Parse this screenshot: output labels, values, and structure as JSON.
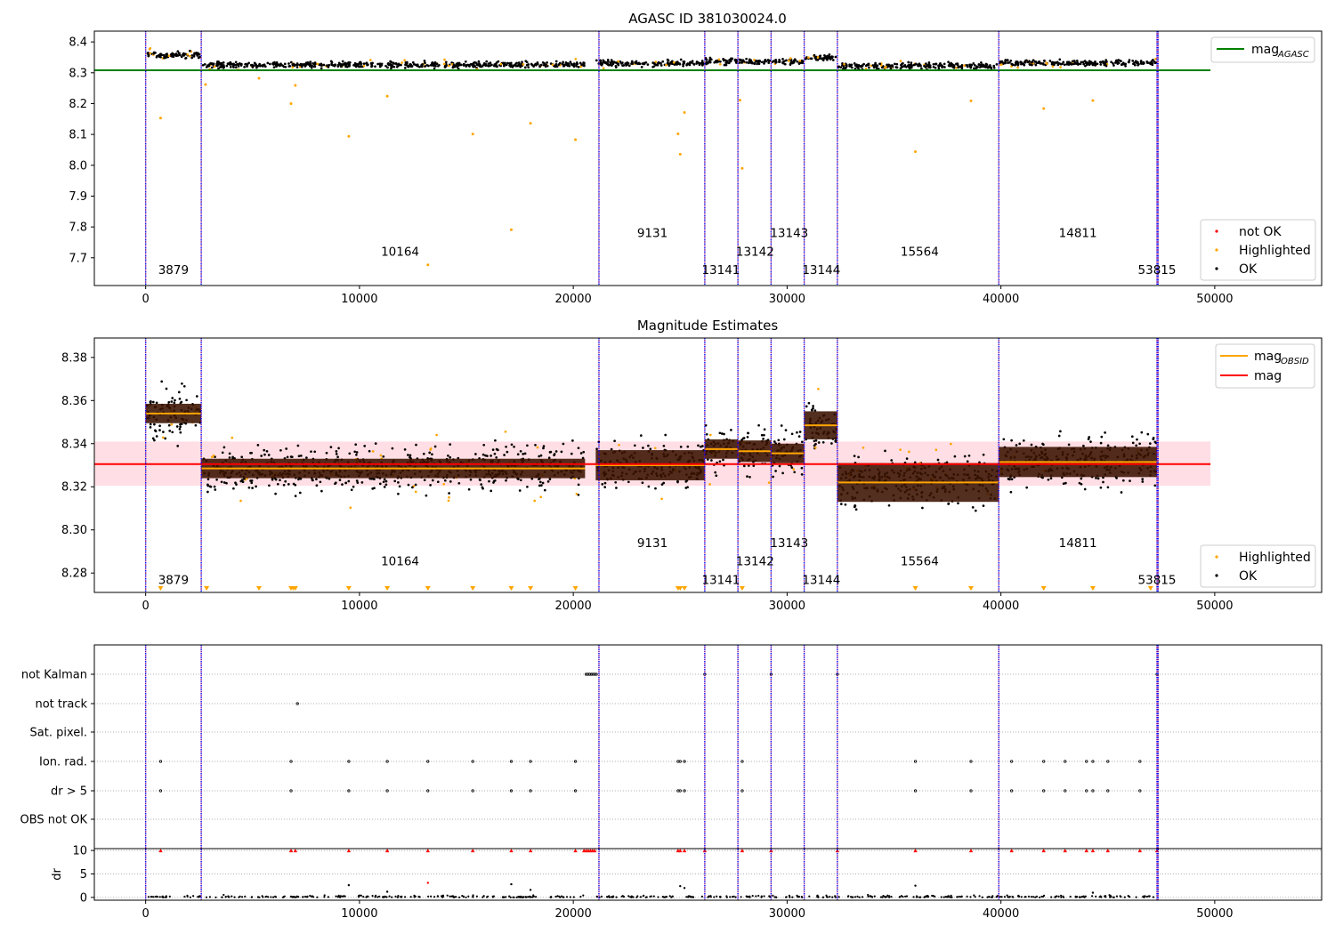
{
  "chart_data": [
    {
      "type": "scatter",
      "title": "AGASC ID 381030024.0",
      "xlim": [
        -2400,
        55000
      ],
      "ylim": [
        7.61,
        8.435
      ],
      "x_ticks": [
        0,
        10000,
        20000,
        30000,
        40000,
        50000
      ],
      "y_ticks": [
        7.7,
        7.8,
        7.9,
        8.0,
        8.1,
        8.2,
        8.3,
        8.4
      ],
      "grid": false,
      "legend_upper": {
        "position": "top-right",
        "entries": [
          {
            "label": "mag",
            "sub": "AGASC",
            "color": "#008000",
            "kind": "line"
          }
        ]
      },
      "legend_lower": {
        "position": "bottom-right",
        "entries": [
          {
            "label": "not OK",
            "color": "#ff0000",
            "kind": "dot"
          },
          {
            "label": "Highlighted",
            "color": "#ffa500",
            "kind": "dot"
          },
          {
            "label": "OK",
            "color": "#000000",
            "kind": "dot"
          }
        ]
      },
      "mag_agasc": 8.308,
      "mag_agasc_xrange": [
        -2400,
        49800
      ],
      "obsid_boundaries": [
        0,
        2600,
        21200,
        26150,
        27700,
        29250,
        30800,
        32350,
        39900,
        47300,
        47350
      ],
      "segments": [
        {
          "x0": 0,
          "x1": 2600,
          "level": 8.358,
          "scatter": 0.006
        },
        {
          "x0": 2600,
          "x1": 20550,
          "level": 8.326,
          "scatter": 0.005
        },
        {
          "x0": 21050,
          "x1": 26150,
          "level": 8.33,
          "scatter": 0.005
        },
        {
          "x0": 26150,
          "x1": 27700,
          "level": 8.337,
          "scatter": 0.005
        },
        {
          "x0": 27700,
          "x1": 29250,
          "level": 8.336,
          "scatter": 0.004
        },
        {
          "x0": 29250,
          "x1": 30800,
          "level": 8.336,
          "scatter": 0.005
        },
        {
          "x0": 30800,
          "x1": 32350,
          "level": 8.349,
          "scatter": 0.005
        },
        {
          "x0": 32350,
          "x1": 39900,
          "level": 8.322,
          "scatter": 0.005
        },
        {
          "x0": 39900,
          "x1": 47300,
          "level": 8.331,
          "scatter": 0.005
        }
      ],
      "highlighted_outliers": [
        {
          "x": 700,
          "y": 8.153
        },
        {
          "x": 2800,
          "y": 8.262
        },
        {
          "x": 5300,
          "y": 8.282
        },
        {
          "x": 6800,
          "y": 8.2
        },
        {
          "x": 7000,
          "y": 8.259
        },
        {
          "x": 9500,
          "y": 8.094
        },
        {
          "x": 11300,
          "y": 8.224
        },
        {
          "x": 13200,
          "y": 7.677
        },
        {
          "x": 15300,
          "y": 8.101
        },
        {
          "x": 17100,
          "y": 7.791
        },
        {
          "x": 18000,
          "y": 8.136
        },
        {
          "x": 20100,
          "y": 8.083
        },
        {
          "x": 24900,
          "y": 8.102
        },
        {
          "x": 25000,
          "y": 8.036
        },
        {
          "x": 25200,
          "y": 8.171
        },
        {
          "x": 27800,
          "y": 8.211
        },
        {
          "x": 27900,
          "y": 7.99
        },
        {
          "x": 36000,
          "y": 8.044
        },
        {
          "x": 38600,
          "y": 8.209
        },
        {
          "x": 42000,
          "y": 8.184
        },
        {
          "x": 44300,
          "y": 8.21
        }
      ],
      "obsid_labels": [
        {
          "text": "3879",
          "x": 1300,
          "y": 7.647
        },
        {
          "text": "10164",
          "x": 11900,
          "y": 7.706
        },
        {
          "text": "9131",
          "x": 23700,
          "y": 7.767
        },
        {
          "text": "13141",
          "x": 26900,
          "y": 7.647
        },
        {
          "text": "13142",
          "x": 28500,
          "y": 7.706
        },
        {
          "text": "13143",
          "x": 30100,
          "y": 7.767
        },
        {
          "text": "13144",
          "x": 31600,
          "y": 7.647
        },
        {
          "text": "15564",
          "x": 36200,
          "y": 7.706
        },
        {
          "text": "14811",
          "x": 43600,
          "y": 7.767
        },
        {
          "text": "53815",
          "x": 47300,
          "y": 7.647
        }
      ]
    },
    {
      "type": "scatter",
      "title": "Magnitude Estimates",
      "xlim": [
        -2400,
        55000
      ],
      "ylim": [
        8.271,
        8.389
      ],
      "x_ticks": [
        0,
        10000,
        20000,
        30000,
        40000,
        50000
      ],
      "y_ticks": [
        8.28,
        8.3,
        8.32,
        8.34,
        8.36,
        8.38
      ],
      "y_tick_labels": [
        "8.28",
        "8.30",
        "8.32",
        "8.34",
        "8.36",
        "8.38"
      ],
      "grid": false,
      "legend_upper": {
        "position": "top-right",
        "entries": [
          {
            "label": "mag",
            "sub": "OBSID",
            "color": "#ffa500",
            "kind": "line"
          },
          {
            "label": "mag",
            "sub": "",
            "color": "#ff0000",
            "kind": "line"
          }
        ]
      },
      "legend_lower": {
        "position": "bottom-right",
        "entries": [
          {
            "label": "Highlighted",
            "color": "#ffa500",
            "kind": "dot"
          },
          {
            "label": "OK",
            "color": "#000000",
            "kind": "dot"
          }
        ]
      },
      "mag": 8.3305,
      "mag_band": [
        8.3205,
        8.341
      ],
      "mag_xrange": [
        -2400,
        49800
      ],
      "obsid_boundaries": [
        0,
        2600,
        21200,
        26150,
        27700,
        29250,
        30800,
        32350,
        39900,
        47300,
        47350
      ],
      "segments": [
        {
          "x0": 0,
          "x1": 2600,
          "mag_obsid": 8.354,
          "std": 0.0045,
          "scatter": 0.006
        },
        {
          "x0": 2600,
          "x1": 20550,
          "mag_obsid": 8.3285,
          "std": 0.0045,
          "scatter": 0.005
        },
        {
          "x0": 21050,
          "x1": 26150,
          "mag_obsid": 8.33,
          "std": 0.007,
          "scatter": 0.0055
        },
        {
          "x0": 26150,
          "x1": 27700,
          "mag_obsid": 8.3375,
          "std": 0.0045,
          "scatter": 0.0055
        },
        {
          "x0": 27700,
          "x1": 29250,
          "mag_obsid": 8.3365,
          "std": 0.005,
          "scatter": 0.005
        },
        {
          "x0": 29250,
          "x1": 30800,
          "mag_obsid": 8.3355,
          "std": 0.0045,
          "scatter": 0.005
        },
        {
          "x0": 30800,
          "x1": 32350,
          "mag_obsid": 8.3485,
          "std": 0.0065,
          "scatter": 0.005
        },
        {
          "x0": 32350,
          "x1": 39900,
          "mag_obsid": 8.322,
          "std": 0.009,
          "scatter": 0.0058
        },
        {
          "x0": 39900,
          "x1": 47300,
          "mag_obsid": 8.3315,
          "std": 0.007,
          "scatter": 0.0055
        }
      ],
      "below_axis_markers_x": [
        700,
        2850,
        5300,
        6800,
        6900,
        7000,
        9500,
        11300,
        13200,
        15300,
        17100,
        18000,
        20100,
        24900,
        25000,
        25200,
        27900,
        36000,
        38600,
        42000,
        44300,
        47000
      ],
      "obsid_labels": [
        {
          "text": "3879",
          "x": 1300,
          "y": 8.275
        },
        {
          "text": "10164",
          "x": 11900,
          "y": 8.2835
        },
        {
          "text": "9131",
          "x": 23700,
          "y": 8.292
        },
        {
          "text": "13141",
          "x": 26900,
          "y": 8.275
        },
        {
          "text": "13142",
          "x": 28500,
          "y": 8.2835
        },
        {
          "text": "13143",
          "x": 30100,
          "y": 8.292
        },
        {
          "text": "13144",
          "x": 31600,
          "y": 8.275
        },
        {
          "text": "15564",
          "x": 36200,
          "y": 8.2835
        },
        {
          "text": "14811",
          "x": 43600,
          "y": 8.292
        },
        {
          "text": "53815",
          "x": 47300,
          "y": 8.275
        }
      ]
    },
    {
      "type": "scatter",
      "title": "",
      "xlim": [
        -2400,
        55000
      ],
      "x_ticks": [
        0,
        10000,
        20000,
        30000,
        40000,
        50000
      ],
      "flag_rows": [
        "not Kalman",
        "not track",
        "Sat. pixel.",
        "Ion. rad.",
        "dr > 5",
        "OBS not OK"
      ],
      "flag_points": {
        "not Kalman": [
          20600,
          20680,
          20760,
          20840,
          20920,
          21000,
          21080,
          26150,
          29250,
          32350,
          47300
        ],
        "not track": [
          7100
        ],
        "Sat. pixel.": [],
        "Ion. rad.": [
          700,
          6800,
          9500,
          11300,
          13200,
          15300,
          17100,
          18000,
          20100,
          24900,
          25000,
          25200,
          27900,
          36000,
          38600,
          40500,
          42000,
          43000,
          44000,
          44300,
          45000,
          46500
        ],
        "dr > 5": [
          700,
          6800,
          9500,
          11300,
          13200,
          15300,
          17100,
          18000,
          20100,
          24900,
          25000,
          25200,
          27900,
          36000,
          38600,
          40500,
          42000,
          43000,
          44000,
          44300,
          45000,
          46500
        ],
        "OBS not OK": []
      },
      "dr_ylabel": "dr",
      "dr_ylim": [
        -0.6,
        10.4
      ],
      "dr_ticks": [
        0,
        5,
        10
      ],
      "dr_clipped_x": [
        700,
        6800,
        7000,
        9500,
        11300,
        13200,
        15300,
        17100,
        18000,
        20100,
        20500,
        20600,
        20700,
        20800,
        20900,
        21000,
        24900,
        25000,
        25200,
        26150,
        27900,
        29250,
        32350,
        36000,
        38600,
        40500,
        42000,
        43000,
        44000,
        44300,
        45000,
        46500,
        47300
      ],
      "dr_outliers": [
        {
          "x": 9500,
          "y": 2.6
        },
        {
          "x": 11300,
          "y": 1.2
        },
        {
          "x": 13200,
          "y": 3.1,
          "color": "#ff0000"
        },
        {
          "x": 17100,
          "y": 2.8
        },
        {
          "x": 18000,
          "y": 1.6
        },
        {
          "x": 25000,
          "y": 2.4
        },
        {
          "x": 25200,
          "y": 2.0
        },
        {
          "x": 36000,
          "y": 2.5
        },
        {
          "x": 44300,
          "y": 1.0
        }
      ]
    }
  ],
  "colors": {
    "ok": "#000000",
    "highlighted": "#ffa500",
    "not_ok": "#ff0000",
    "boundary": "#800080",
    "boundary_alt": "#0000ff",
    "agasc_line": "#008000",
    "obsid_line": "#ffa500",
    "mag_line": "#ff0000",
    "mag_band": "#ffc0cb",
    "obsid_band": "#3a1200",
    "row_grid": "#b0b0b0"
  }
}
